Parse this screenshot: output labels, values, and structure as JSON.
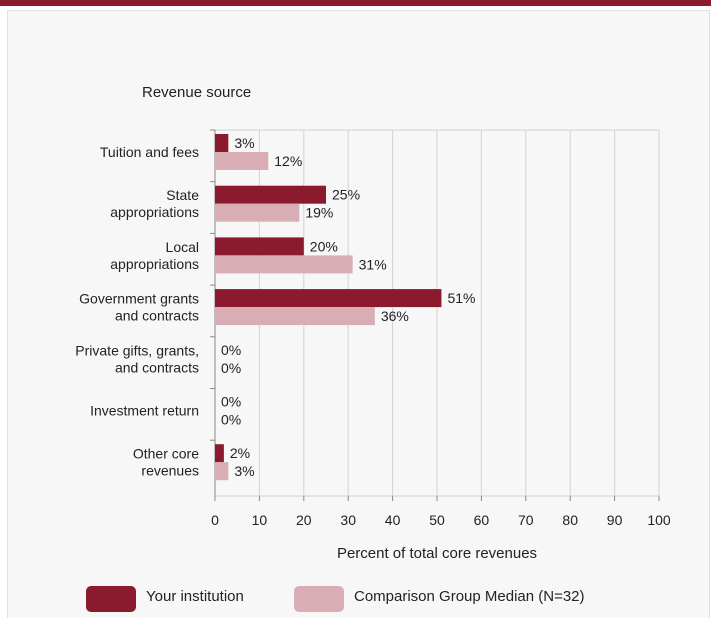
{
  "colors": {
    "accent": "#8b1a2f",
    "institution": "#8b1a2f",
    "comparison": "#d9adb4"
  },
  "chart_data": {
    "type": "bar",
    "orientation": "horizontal",
    "title": "Revenue source",
    "xlabel": "Percent of total core revenues",
    "ylabel": "",
    "xlim": [
      0,
      100
    ],
    "xticks": [
      0,
      10,
      20,
      30,
      40,
      50,
      60,
      70,
      80,
      90,
      100
    ],
    "categories": [
      [
        "Tuition and fees"
      ],
      [
        "State",
        "appropriations"
      ],
      [
        "Local",
        "appropriations"
      ],
      [
        "Government grants",
        "and contracts"
      ],
      [
        "Private gifts, grants,",
        "and contracts"
      ],
      [
        "Investment return"
      ],
      [
        "Other core",
        "revenues"
      ]
    ],
    "series": [
      {
        "name": "Your institution",
        "color": "#8b1a2f",
        "values": [
          3,
          25,
          20,
          51,
          0,
          0,
          2
        ]
      },
      {
        "name": "Comparison Group Median (N=32)",
        "color": "#d9adb4",
        "values": [
          12,
          19,
          31,
          36,
          0,
          0,
          3
        ]
      }
    ],
    "value_suffix": "%",
    "grid": true,
    "legend_position": "bottom"
  }
}
